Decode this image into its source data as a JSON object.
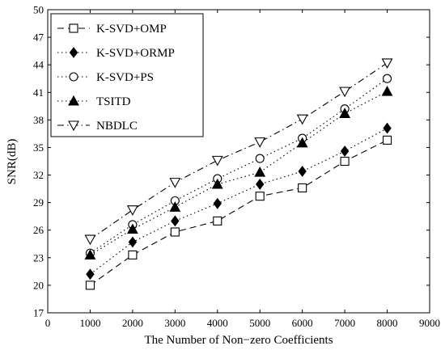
{
  "chart_data": {
    "type": "line",
    "title": "",
    "xlabel": "The Number of Non−zero Coefficients",
    "ylabel": "SNR(dB)",
    "xlim": [
      0,
      9000
    ],
    "ylim": [
      17,
      50
    ],
    "xticks": [
      0,
      1000,
      2000,
      3000,
      4000,
      5000,
      6000,
      7000,
      8000,
      9000
    ],
    "yticks": [
      17,
      20,
      23,
      26,
      29,
      32,
      35,
      38,
      41,
      44,
      47,
      50
    ],
    "grid": false,
    "legend_position": "top-left",
    "x": [
      1000,
      2000,
      3000,
      4000,
      5000,
      6000,
      7000,
      8000
    ],
    "series": [
      {
        "name": "K-SVD+OMP",
        "line": "dashed",
        "marker": "square-open",
        "values": [
          20.0,
          23.3,
          25.8,
          27.0,
          29.7,
          30.6,
          33.5,
          35.8
        ]
      },
      {
        "name": "K-SVD+ORMP",
        "line": "dotted",
        "marker": "diamond-filled",
        "values": [
          21.2,
          24.7,
          27.0,
          28.9,
          31.0,
          32.4,
          34.6,
          37.1
        ]
      },
      {
        "name": "K-SVD+PS",
        "line": "dotted",
        "marker": "circle-open",
        "values": [
          23.5,
          26.6,
          29.2,
          31.6,
          33.8,
          36.0,
          39.2,
          42.5
        ]
      },
      {
        "name": "TSITD",
        "line": "dotted",
        "marker": "triangle-up-filled",
        "values": [
          23.3,
          26.1,
          28.5,
          31.0,
          32.3,
          35.5,
          38.7,
          41.1
        ]
      },
      {
        "name": "NBDLC",
        "line": "dashdot",
        "marker": "triangle-down-open",
        "values": [
          25.0,
          28.2,
          31.2,
          33.6,
          35.6,
          38.1,
          41.1,
          44.2
        ]
      }
    ],
    "line_color": "#000000"
  }
}
